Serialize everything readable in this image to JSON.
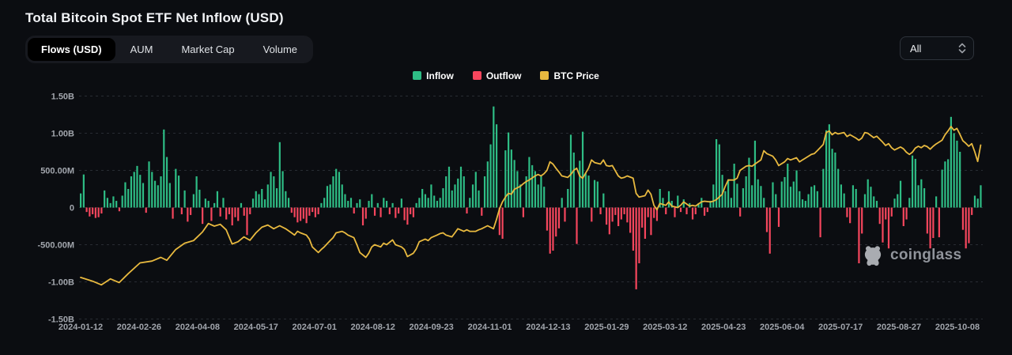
{
  "header": {
    "title": "Total Bitcoin Spot ETF Net Inflow (USD)"
  },
  "tabs": {
    "items": [
      {
        "label": "Flows (USD)",
        "active": true
      },
      {
        "label": "AUM",
        "active": false
      },
      {
        "label": "Market Cap",
        "active": false
      },
      {
        "label": "Volume",
        "active": false
      }
    ]
  },
  "range_select": {
    "value": "All"
  },
  "legend": {
    "items": [
      {
        "label": "Inflow",
        "color": "#2ebd85"
      },
      {
        "label": "Outflow",
        "color": "#f6465d"
      },
      {
        "label": "BTC Price",
        "color": "#e8b93f"
      }
    ]
  },
  "watermark": {
    "text": "coinglass"
  },
  "chart_data": {
    "type": "bar",
    "title": "Total Bitcoin Spot ETF Net Inflow (USD)",
    "unit": "USD",
    "ylim_usd_m": [
      -1500,
      1500
    ],
    "grid": "horizontal dashed",
    "legend_position": "top-center",
    "y_ticks": [
      {
        "label": "1.50B",
        "value_m": 1500
      },
      {
        "label": "1.00B",
        "value_m": 1000
      },
      {
        "label": "500.00M",
        "value_m": 500
      },
      {
        "label": "0",
        "value_m": 0
      },
      {
        "label": "-500.00M",
        "value_m": -500
      },
      {
        "label": "-1.00B",
        "value_m": -1000
      },
      {
        "label": "-1.50B",
        "value_m": -1500
      }
    ],
    "x_tick_labels": [
      "2024-01-12",
      "2024-02-26",
      "2024-04-08",
      "2024-05-17",
      "2024-07-01",
      "2024-08-12",
      "2024-09-23",
      "2024-11-01",
      "2024-12-13",
      "2025-01-29",
      "2025-03-12",
      "2025-04-23",
      "2025-06-04",
      "2025-07-17",
      "2025-08-27",
      "2025-10-08"
    ],
    "series": [
      {
        "name": "Inflow/Outflow",
        "type": "bar",
        "description": "Daily net spot-ETF flow in USD millions, sampled ~every 1.5 trading days from 2024-01-12 to ~2025-10-20; positive = Inflow (green), negative = Outflow (red)",
        "color_positive": "#2ebd85",
        "color_negative": "#f6465d",
        "values_usd_m": [
          190,
          445,
          -60,
          -120,
          -90,
          -140,
          -130,
          -80,
          230,
          130,
          60,
          150,
          90,
          -50,
          160,
          340,
          250,
          420,
          480,
          560,
          440,
          330,
          -70,
          620,
          480,
          360,
          300,
          420,
          1050,
          680,
          330,
          -150,
          520,
          430,
          -90,
          230,
          -190,
          -100,
          180,
          420,
          240,
          -220,
          120,
          90,
          -180,
          60,
          220,
          -120,
          130,
          -160,
          -90,
          -240,
          -130,
          -180,
          60,
          -110,
          -370,
          -90,
          120,
          220,
          180,
          250,
          110,
          310,
          480,
          420,
          260,
          880,
          490,
          220,
          130,
          -70,
          -130,
          -200,
          -180,
          -150,
          -210,
          -110,
          -60,
          -130,
          -90,
          60,
          130,
          290,
          310,
          420,
          520,
          480,
          310,
          180,
          90,
          130,
          -80,
          60,
          110,
          -240,
          -150,
          90,
          180,
          -110,
          60,
          -130,
          130,
          90,
          -90,
          60,
          -140,
          -80,
          120,
          -170,
          -230,
          -90,
          -130,
          60,
          130,
          250,
          180,
          130,
          310,
          160,
          90,
          130,
          260,
          420,
          550,
          230,
          310,
          390,
          550,
          420,
          -80,
          130,
          310,
          480,
          230,
          -110,
          420,
          620,
          850,
          1360,
          1120,
          -370,
          -420,
          770,
          1010,
          780,
          640,
          490,
          310,
          -130,
          420,
          680,
          570,
          490,
          310,
          420,
          280,
          -310,
          -620,
          -580,
          -390,
          -280,
          130,
          -190,
          250,
          980,
          740,
          -490,
          630,
          1020,
          460,
          430,
          -190,
          370,
          350,
          -90,
          190,
          -230,
          -360,
          -190,
          -100,
          -250,
          -160,
          -90,
          -200,
          -340,
          -580,
          -1100,
          -750,
          -270,
          -420,
          -130,
          -370,
          -140,
          -180,
          250,
          130,
          -90,
          220,
          90,
          -130,
          160,
          -60,
          110,
          -90,
          60,
          -160,
          -90,
          60,
          130,
          -110,
          -60,
          90,
          310,
          920,
          850,
          440,
          220,
          380,
          130,
          590,
          320,
          -120,
          260,
          420,
          670,
          300,
          900,
          380,
          290,
          130,
          -330,
          -620,
          340,
          180,
          -260,
          350,
          410,
          590,
          280,
          350,
          500,
          220,
          110,
          90,
          180,
          280,
          300,
          220,
          -400,
          520,
          1040,
          1120,
          790,
          740,
          520,
          310,
          190,
          -130,
          -210,
          300,
          250,
          -750,
          -350,
          180,
          380,
          280,
          150,
          90,
          -220,
          -470,
          -160,
          -550,
          -120,
          120,
          180,
          360,
          -250,
          -160,
          130,
          700,
          655,
          300,
          380,
          260,
          -350,
          -550,
          -410,
          150,
          -400,
          510,
          620,
          650,
          1220,
          1000,
          900,
          750,
          -300,
          -550,
          -480,
          -100,
          160,
          120,
          300
        ]
      },
      {
        "name": "BTC Price",
        "type": "line",
        "color": "#e8b93f",
        "description": "BTC price overlay line (no visible price axis); points are [bar_index, y position expressed in USD millions on the left flow axis]",
        "points": [
          [
            0,
            -940
          ],
          [
            4,
            -990
          ],
          [
            7,
            -1040
          ],
          [
            10,
            -960
          ],
          [
            13,
            -1010
          ],
          [
            16,
            -890
          ],
          [
            20,
            -745
          ],
          [
            24,
            -720
          ],
          [
            27,
            -670
          ],
          [
            29,
            -710
          ],
          [
            32,
            -565
          ],
          [
            35,
            -480
          ],
          [
            38,
            -445
          ],
          [
            41,
            -330
          ],
          [
            43,
            -215
          ],
          [
            45,
            -250
          ],
          [
            47,
            -225
          ],
          [
            49,
            -300
          ],
          [
            51,
            -490
          ],
          [
            53,
            -460
          ],
          [
            55,
            -395
          ],
          [
            57,
            -440
          ],
          [
            59,
            -340
          ],
          [
            61,
            -265
          ],
          [
            63,
            -235
          ],
          [
            65,
            -285
          ],
          [
            67,
            -245
          ],
          [
            69,
            -285
          ],
          [
            71,
            -340
          ],
          [
            72,
            -370
          ],
          [
            73,
            -320
          ],
          [
            74,
            -340
          ],
          [
            76,
            -370
          ],
          [
            77,
            -425
          ],
          [
            78,
            -530
          ],
          [
            80,
            -605
          ],
          [
            81,
            -565
          ],
          [
            82,
            -530
          ],
          [
            84,
            -445
          ],
          [
            85,
            -405
          ],
          [
            86,
            -340
          ],
          [
            88,
            -320
          ],
          [
            89,
            -340
          ],
          [
            90,
            -370
          ],
          [
            92,
            -405
          ],
          [
            93,
            -500
          ],
          [
            94,
            -605
          ],
          [
            96,
            -670
          ],
          [
            97,
            -615
          ],
          [
            98,
            -530
          ],
          [
            99,
            -500
          ],
          [
            101,
            -530
          ],
          [
            102,
            -480
          ],
          [
            103,
            -500
          ],
          [
            105,
            -435
          ],
          [
            106,
            -500
          ],
          [
            108,
            -530
          ],
          [
            109,
            -565
          ],
          [
            110,
            -660
          ],
          [
            112,
            -615
          ],
          [
            113,
            -555
          ],
          [
            114,
            -460
          ],
          [
            116,
            -425
          ],
          [
            117,
            -445
          ],
          [
            118,
            -405
          ],
          [
            120,
            -370
          ],
          [
            121,
            -350
          ],
          [
            122,
            -340
          ],
          [
            123,
            -370
          ],
          [
            125,
            -395
          ],
          [
            126,
            -340
          ],
          [
            127,
            -285
          ],
          [
            129,
            -320
          ],
          [
            130,
            -300
          ],
          [
            131,
            -320
          ],
          [
            133,
            -320
          ],
          [
            134,
            -300
          ],
          [
            135,
            -285
          ],
          [
            137,
            -245
          ],
          [
            138,
            -265
          ],
          [
            139,
            -285
          ],
          [
            140,
            -160
          ],
          [
            141,
            -20
          ],
          [
            142,
            75
          ],
          [
            143,
            140
          ],
          [
            144,
            190
          ],
          [
            145,
            180
          ],
          [
            146,
            245
          ],
          [
            147,
            265
          ],
          [
            148,
            285
          ],
          [
            149,
            320
          ],
          [
            150,
            350
          ],
          [
            151,
            370
          ],
          [
            153,
            425
          ],
          [
            154,
            445
          ],
          [
            155,
            425
          ],
          [
            156,
            455
          ],
          [
            157,
            500
          ],
          [
            158,
            615
          ],
          [
            159,
            585
          ],
          [
            160,
            530
          ],
          [
            161,
            480
          ],
          [
            162,
            425
          ],
          [
            164,
            405
          ],
          [
            165,
            445
          ],
          [
            166,
            500
          ],
          [
            167,
            530
          ],
          [
            168,
            425
          ],
          [
            169,
            395
          ],
          [
            171,
            530
          ],
          [
            172,
            640
          ],
          [
            173,
            605
          ],
          [
            175,
            585
          ],
          [
            176,
            640
          ],
          [
            177,
            565
          ],
          [
            178,
            555
          ],
          [
            179,
            565
          ],
          [
            181,
            425
          ],
          [
            182,
            395
          ],
          [
            183,
            405
          ],
          [
            184,
            425
          ],
          [
            186,
            395
          ],
          [
            187,
            190
          ],
          [
            188,
            140
          ],
          [
            190,
            160
          ],
          [
            191,
            235
          ],
          [
            192,
            180
          ],
          [
            193,
            30
          ],
          [
            194,
            -30
          ],
          [
            195,
            55
          ],
          [
            197,
            30
          ],
          [
            198,
            75
          ],
          [
            199,
            20
          ],
          [
            201,
            0
          ],
          [
            202,
            30
          ],
          [
            203,
            75
          ],
          [
            205,
            20
          ],
          [
            206,
            30
          ],
          [
            207,
            20
          ],
          [
            209,
            75
          ],
          [
            210,
            85
          ],
          [
            212,
            75
          ],
          [
            213,
            85
          ],
          [
            214,
            105
          ],
          [
            216,
            180
          ],
          [
            217,
            285
          ],
          [
            218,
            370
          ],
          [
            220,
            370
          ],
          [
            221,
            395
          ],
          [
            222,
            500
          ],
          [
            224,
            555
          ],
          [
            225,
            565
          ],
          [
            226,
            555
          ],
          [
            227,
            585
          ],
          [
            229,
            640
          ],
          [
            230,
            765
          ],
          [
            231,
            725
          ],
          [
            233,
            690
          ],
          [
            234,
            640
          ],
          [
            235,
            565
          ],
          [
            237,
            615
          ],
          [
            238,
            660
          ],
          [
            239,
            640
          ],
          [
            241,
            670
          ],
          [
            242,
            615
          ],
          [
            243,
            640
          ],
          [
            245,
            690
          ],
          [
            246,
            715
          ],
          [
            247,
            725
          ],
          [
            248,
            765
          ],
          [
            250,
            850
          ],
          [
            251,
            1010
          ],
          [
            252,
            1030
          ],
          [
            253,
            980
          ],
          [
            254,
            1010
          ],
          [
            255,
            990
          ],
          [
            257,
            1010
          ],
          [
            258,
            955
          ],
          [
            259,
            980
          ],
          [
            261,
            935
          ],
          [
            262,
            905
          ],
          [
            263,
            935
          ],
          [
            264,
            1010
          ],
          [
            265,
            1000
          ],
          [
            267,
            940
          ],
          [
            268,
            960
          ],
          [
            270,
            880
          ],
          [
            271,
            835
          ],
          [
            272,
            860
          ],
          [
            273,
            805
          ],
          [
            274,
            775
          ],
          [
            276,
            815
          ],
          [
            277,
            790
          ],
          [
            278,
            745
          ],
          [
            279,
            715
          ],
          [
            280,
            745
          ],
          [
            281,
            800
          ],
          [
            282,
            825
          ],
          [
            283,
            805
          ],
          [
            284,
            835
          ],
          [
            285,
            820
          ],
          [
            286,
            785
          ],
          [
            287,
            825
          ],
          [
            288,
            855
          ],
          [
            290,
            905
          ],
          [
            291,
            980
          ],
          [
            292,
            1030
          ],
          [
            293,
            1090
          ],
          [
            294,
            1040
          ],
          [
            295,
            1065
          ],
          [
            296,
            985
          ],
          [
            297,
            900
          ],
          [
            298,
            865
          ],
          [
            299,
            825
          ],
          [
            300,
            860
          ],
          [
            301,
            750
          ],
          [
            302,
            620
          ],
          [
            303,
            840
          ]
        ]
      }
    ]
  }
}
